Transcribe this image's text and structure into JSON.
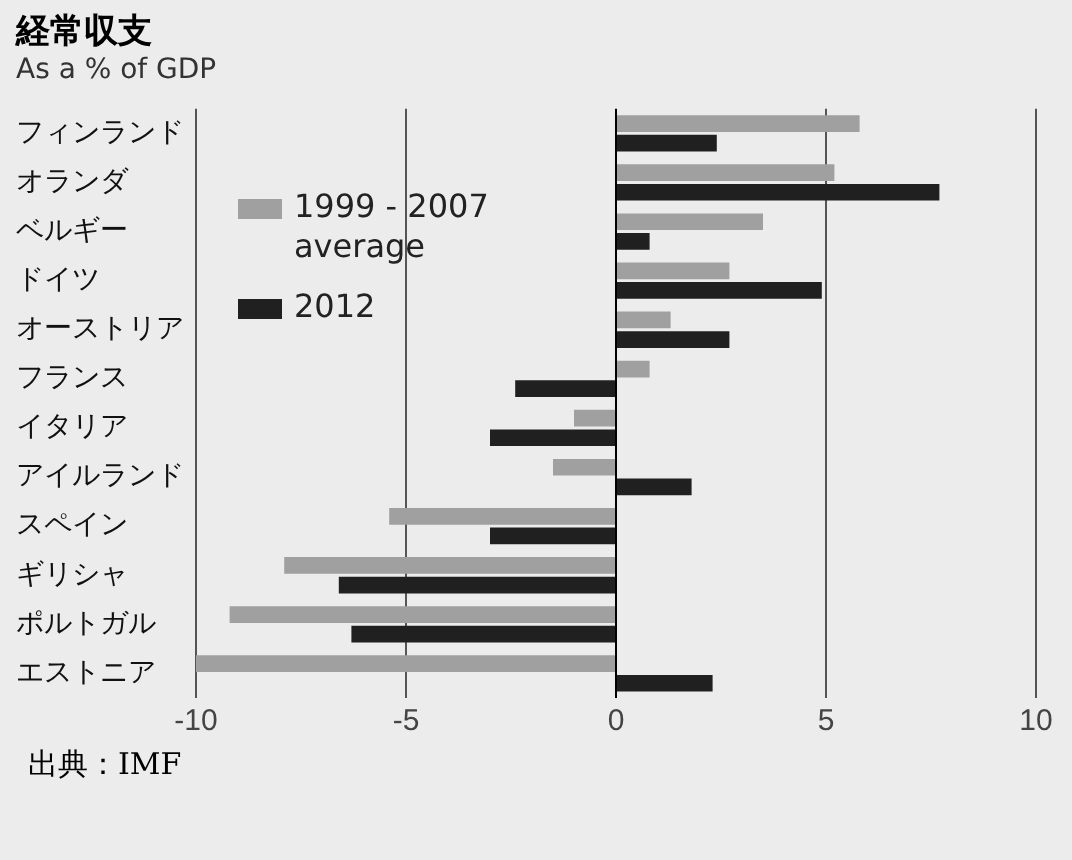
{
  "chart_data": {
    "type": "bar",
    "orientation": "horizontal",
    "title": "経常収支",
    "subtitle": "As a % of GDP",
    "categories": [
      "フィンランド",
      "オランダ",
      "ベルギー",
      "ドイツ",
      "オーストリア",
      "フランス",
      "イタリア",
      "アイルランド",
      "スペイン",
      "ギリシャ",
      "ポルトガル",
      "エストニア"
    ],
    "series": [
      {
        "name": "1999 - 2007 average",
        "color": "#a0a0a0",
        "values": [
          5.8,
          5.2,
          3.5,
          2.7,
          1.3,
          0.8,
          -1.0,
          -1.5,
          -5.4,
          -7.9,
          -9.2,
          -10.0
        ]
      },
      {
        "name": "2012",
        "color": "#202020",
        "values": [
          2.4,
          7.7,
          0.8,
          4.9,
          2.7,
          -2.4,
          -3.0,
          1.8,
          -3.0,
          -6.6,
          -6.3,
          2.3
        ]
      }
    ],
    "xlim": [
      -10,
      10
    ],
    "xticks": [
      -10,
      -5,
      0,
      5,
      10
    ],
    "grid": "x",
    "legend": "top left",
    "annotations": [
      "出典：IMF"
    ]
  }
}
